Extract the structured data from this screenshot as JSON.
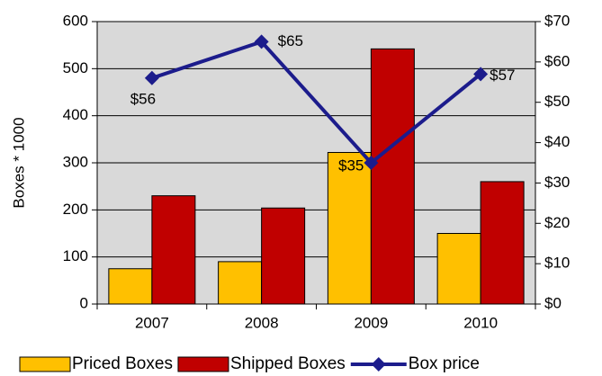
{
  "chart_data": {
    "type": "bar",
    "categories": [
      "2007",
      "2008",
      "2009",
      "2010"
    ],
    "series": [
      {
        "name": "Priced Boxes",
        "color": "#ffc000",
        "values": [
          75,
          90,
          322,
          150
        ]
      },
      {
        "name": "Shipped Boxes",
        "color": "#c00000",
        "values": [
          230,
          204,
          542,
          260
        ]
      },
      {
        "name": "Box price",
        "type": "line",
        "axis": "y2",
        "color": "#1c1c8c",
        "values": [
          56,
          65,
          35,
          57
        ],
        "value_labels": [
          "$56",
          "$65",
          "$35",
          "$57"
        ]
      }
    ],
    "ylabel": "Boxes * 1000",
    "ylim": [
      0,
      600
    ],
    "yticks": [
      0,
      100,
      200,
      300,
      400,
      500,
      600
    ],
    "y2lim": [
      0,
      70
    ],
    "y2ticks": [
      {
        "value": 0,
        "label": "$0"
      },
      {
        "value": 10,
        "label": "$10"
      },
      {
        "value": 20,
        "label": "$20"
      },
      {
        "value": 30,
        "label": "$30"
      },
      {
        "value": 40,
        "label": "$40"
      },
      {
        "value": 50,
        "label": "$50"
      },
      {
        "value": 60,
        "label": "$60"
      },
      {
        "value": 70,
        "label": "$70"
      }
    ],
    "grid": true,
    "plot_background": "#d9d9d9",
    "legend": "bottom"
  }
}
